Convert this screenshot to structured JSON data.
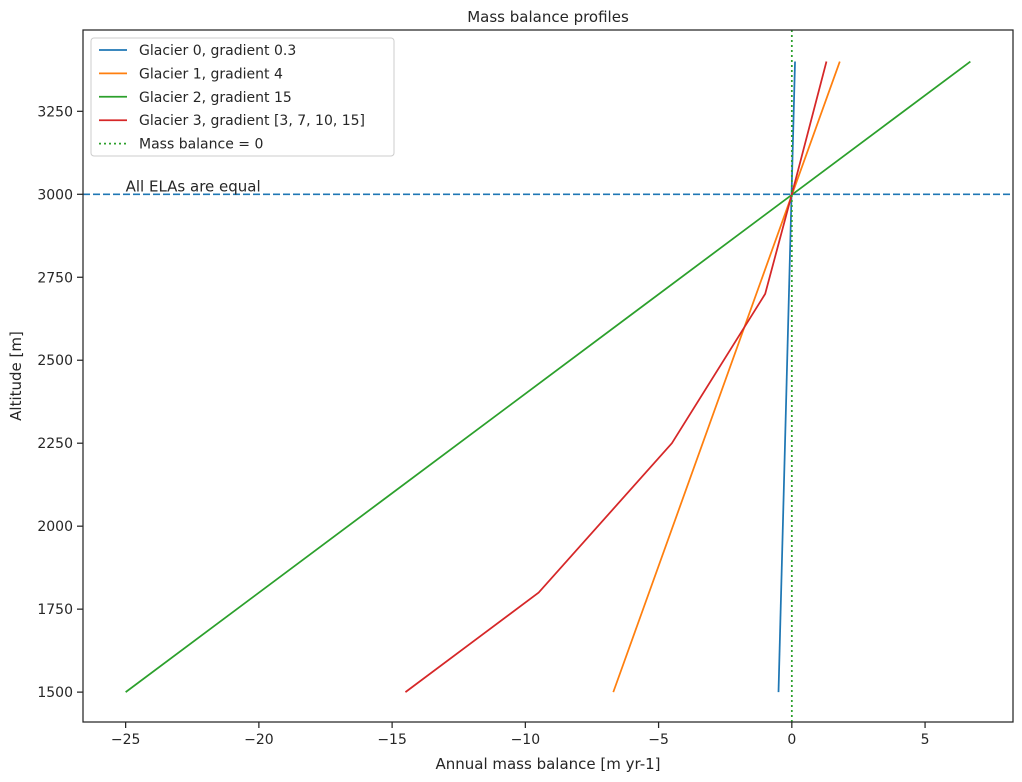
{
  "chart_data": {
    "type": "line",
    "title": "Mass balance profiles",
    "xlabel": "Annual mass balance [m yr-1]",
    "ylabel": "Altitude [m]",
    "xlim": [
      -26.6,
      8.3
    ],
    "ylim": [
      1410,
      3495
    ],
    "xticks": [
      -25,
      -20,
      -15,
      -10,
      -5,
      0,
      5
    ],
    "xtick_labels": [
      "−25",
      "−20",
      "−15",
      "−10",
      "−5",
      "0",
      "5"
    ],
    "yticks": [
      1500,
      1750,
      2000,
      2250,
      2500,
      2750,
      3000,
      3250
    ],
    "ytick_labels": [
      "1500",
      "1750",
      "2000",
      "2250",
      "2500",
      "2750",
      "3000",
      "3250"
    ],
    "grid": false,
    "legend_position": "upper-left",
    "series": [
      {
        "name": "Glacier 0, gradient 0.3",
        "color": "#1f77b4",
        "style": "solid",
        "points": [
          [
            -0.5,
            1500
          ],
          [
            0.12,
            3400
          ]
        ]
      },
      {
        "name": "Glacier 1, gradient 4",
        "color": "#ff7f0e",
        "style": "solid",
        "points": [
          [
            -6.7,
            1500
          ],
          [
            1.8,
            3400
          ]
        ]
      },
      {
        "name": "Glacier 2, gradient 15",
        "color": "#2ca02c",
        "style": "solid",
        "points": [
          [
            -25.0,
            1500
          ],
          [
            6.7,
            3400
          ]
        ]
      },
      {
        "name": "Glacier 3, gradient [3, 7, 10, 15]",
        "color": "#d62728",
        "style": "solid",
        "points": [
          [
            -14.5,
            1500
          ],
          [
            -9.5,
            1800
          ],
          [
            -4.5,
            2250
          ],
          [
            -1.0,
            2700
          ],
          [
            0.0,
            3000
          ],
          [
            1.3,
            3400
          ]
        ]
      },
      {
        "name": "Mass balance = 0",
        "color": "#2ca02c",
        "style": "dotted",
        "vertical_x": 0
      }
    ],
    "hline": {
      "y": 3000,
      "color": "#1f77b4",
      "style": "dashed"
    },
    "annotation": {
      "text": "All ELAs are equal",
      "x": -25,
      "y": 3000
    }
  }
}
